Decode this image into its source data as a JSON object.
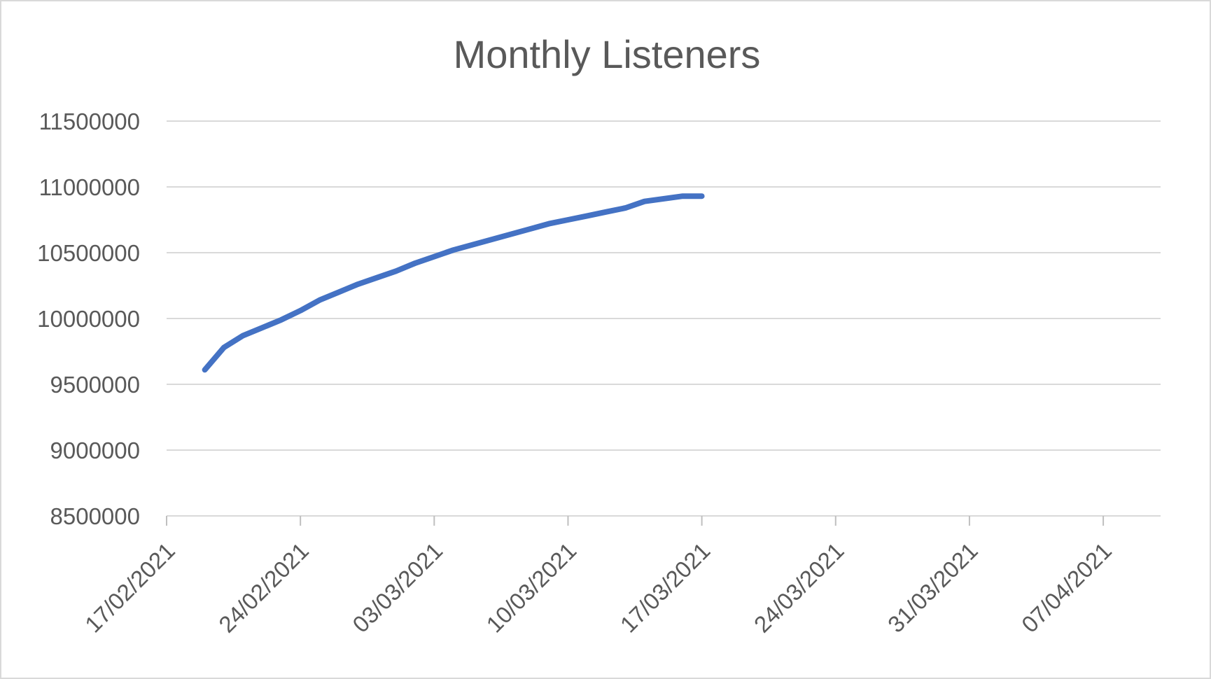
{
  "chart_data": {
    "type": "line",
    "title": "Monthly Listeners",
    "xlabel": "",
    "ylabel": "",
    "x_axis_type": "date",
    "xlim": [
      "17/02/2021",
      "10/04/2021"
    ],
    "ylim": [
      8500000,
      11500000
    ],
    "y_ticks": [
      8500000,
      9000000,
      9500000,
      10000000,
      10500000,
      11000000,
      11500000
    ],
    "y_tick_labels": [
      "8500000",
      "9000000",
      "9500000",
      "10000000",
      "10500000",
      "11000000",
      "11500000"
    ],
    "x_ticks": [
      "17/02/2021",
      "24/02/2021",
      "03/03/2021",
      "10/03/2021",
      "17/03/2021",
      "24/03/2021",
      "31/03/2021",
      "07/04/2021"
    ],
    "grid": true,
    "legend": "none",
    "series": [
      {
        "color": "#4472c4",
        "x": [
          "19/02/2021",
          "20/02/2021",
          "21/02/2021",
          "22/02/2021",
          "23/02/2021",
          "24/02/2021",
          "25/02/2021",
          "26/02/2021",
          "27/02/2021",
          "28/02/2021",
          "01/03/2021",
          "02/03/2021",
          "03/03/2021",
          "04/03/2021",
          "05/03/2021",
          "06/03/2021",
          "07/03/2021",
          "08/03/2021",
          "09/03/2021",
          "10/03/2021",
          "11/03/2021",
          "12/03/2021",
          "13/03/2021",
          "14/03/2021",
          "15/03/2021",
          "16/03/2021",
          "17/03/2021"
        ],
        "values": [
          9610000,
          9780000,
          9870000,
          9930000,
          9990000,
          10060000,
          10140000,
          10200000,
          10260000,
          10310000,
          10360000,
          10420000,
          10470000,
          10520000,
          10560000,
          10600000,
          10640000,
          10680000,
          10720000,
          10750000,
          10780000,
          10810000,
          10840000,
          10890000,
          10910000,
          10930000,
          10930000
        ]
      }
    ]
  }
}
